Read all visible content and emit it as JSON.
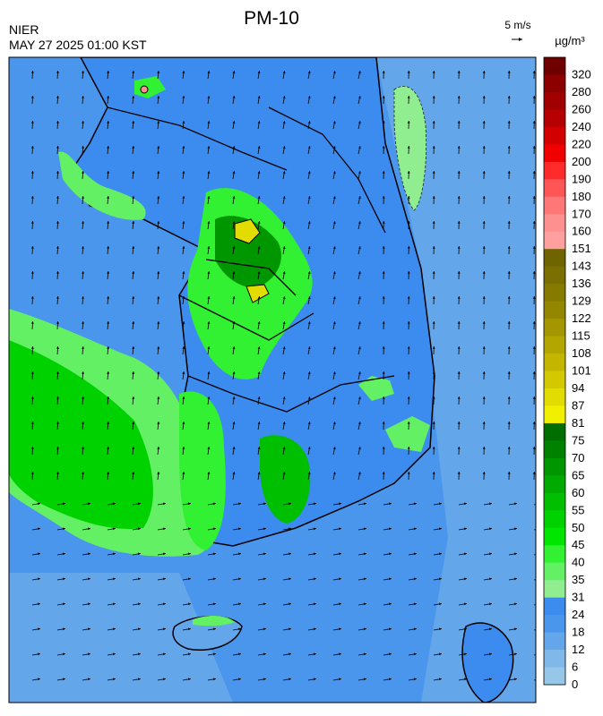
{
  "header": {
    "title": "PM-10",
    "agency": "NIER",
    "datetime": "MAY 27 2025 01:00 KST",
    "wind_scale": "5 m/s"
  },
  "legend": {
    "unit": "µg/m³",
    "levels": [
      {
        "value": 320,
        "color": "#6e0000"
      },
      {
        "value": 280,
        "color": "#8c0000"
      },
      {
        "value": 260,
        "color": "#a00000"
      },
      {
        "value": 240,
        "color": "#b40000"
      },
      {
        "value": 220,
        "color": "#d20000"
      },
      {
        "value": 200,
        "color": "#f00000"
      },
      {
        "value": 190,
        "color": "#ff2a2a"
      },
      {
        "value": 180,
        "color": "#ff5555"
      },
      {
        "value": 170,
        "color": "#ff7777"
      },
      {
        "value": 160,
        "color": "#ff9090"
      },
      {
        "value": 151,
        "color": "#ffa0a0"
      },
      {
        "value": 143,
        "color": "#6e6400"
      },
      {
        "value": 136,
        "color": "#7a6f00"
      },
      {
        "value": 129,
        "color": "#867a00"
      },
      {
        "value": 122,
        "color": "#948700"
      },
      {
        "value": 115,
        "color": "#a49600"
      },
      {
        "value": 108,
        "color": "#b4a600"
      },
      {
        "value": 101,
        "color": "#c4b600"
      },
      {
        "value": 94,
        "color": "#d4c800"
      },
      {
        "value": 87,
        "color": "#e2dc00"
      },
      {
        "value": 81,
        "color": "#f0f000"
      },
      {
        "value": 75,
        "color": "#006e00"
      },
      {
        "value": 70,
        "color": "#008200"
      },
      {
        "value": 65,
        "color": "#009600"
      },
      {
        "value": 60,
        "color": "#00aa00"
      },
      {
        "value": 55,
        "color": "#00be00"
      },
      {
        "value": 50,
        "color": "#00d200"
      },
      {
        "value": 45,
        "color": "#00e600"
      },
      {
        "value": 40,
        "color": "#32f032"
      },
      {
        "value": 35,
        "color": "#64f064"
      },
      {
        "value": 31,
        "color": "#90ee90"
      },
      {
        "value": 24,
        "color": "#3c8cf0"
      },
      {
        "value": 18,
        "color": "#4a96ec"
      },
      {
        "value": 12,
        "color": "#64a6ea"
      },
      {
        "value": 6,
        "color": "#80b8ea"
      },
      {
        "value": 0,
        "color": "#96c6e8"
      }
    ]
  }
}
